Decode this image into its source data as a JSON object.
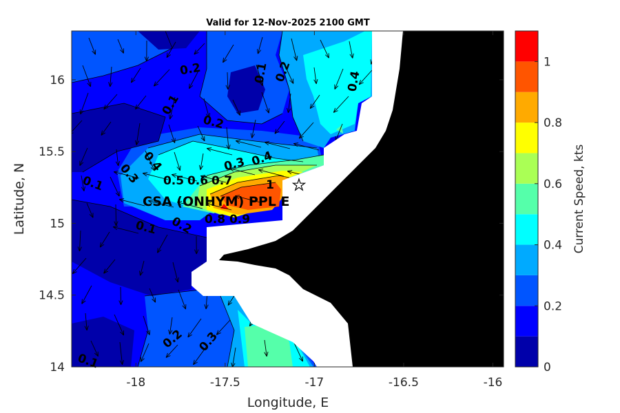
{
  "chart_data": {
    "type": "heatmap",
    "subtype": "filled-contour-map-with-current-vectors",
    "title": "Valid for 12-Nov-2025 2100 GMT",
    "xlabel": "Longitude, E",
    "ylabel": "Latitude, N",
    "xlim": [
      -18.36,
      -15.94
    ],
    "ylim": [
      14.0,
      16.34
    ],
    "xticks": [
      -18,
      -17.5,
      -17,
      -16.5,
      -16
    ],
    "xtick_labels": [
      "-18",
      "-17.5",
      "-17",
      "-16.5",
      "-16"
    ],
    "yticks": [
      14,
      14.5,
      15,
      15.5,
      16
    ],
    "ytick_labels": [
      "14",
      "14.5",
      "15",
      "15.5",
      "16"
    ],
    "colorbar": {
      "label": "Current Speed, kts",
      "range": [
        0,
        1.1
      ],
      "levels": [
        0,
        0.1,
        0.2,
        0.3,
        0.4,
        0.5,
        0.6,
        0.7,
        0.8,
        0.9,
        1.0,
        1.1
      ],
      "colors": [
        "#0000aa",
        "#0000ff",
        "#0055ff",
        "#00aaff",
        "#00ffff",
        "#55ffaa",
        "#aaff55",
        "#ffff00",
        "#ffaa00",
        "#ff5500",
        "#ff0000"
      ],
      "ticks": [
        0,
        0.2,
        0.4,
        0.6,
        0.8,
        1
      ],
      "tick_labels": [
        "0",
        "0.2",
        "0.4",
        "0.6",
        "0.8",
        "1"
      ]
    },
    "contour_labels": [
      {
        "text": "0.2"
      },
      {
        "text": "0.1"
      },
      {
        "text": "0.2"
      },
      {
        "text": "0.2"
      },
      {
        "text": "0.1"
      },
      {
        "text": "0.4"
      },
      {
        "text": "0.3"
      },
      {
        "text": "0.4"
      },
      {
        "text": "0.1"
      },
      {
        "text": "0.3"
      },
      {
        "text": "0.4"
      },
      {
        "text": "0.2"
      },
      {
        "text": "0.1"
      },
      {
        "text": "0.8"
      },
      {
        "text": "0.9"
      },
      {
        "text": "0.5"
      },
      {
        "text": "0.6"
      },
      {
        "text": "0.7"
      },
      {
        "text": "0.2"
      },
      {
        "text": "0.3"
      },
      {
        "text": "0.1"
      },
      {
        "text": "1"
      }
    ],
    "station": {
      "label": "CSA (ONHYM) PPL E",
      "marker": "star-icon",
      "lon": -17.13,
      "lat": 15.23
    },
    "land_color": "#000000",
    "no_data_color": "#ffffff"
  }
}
